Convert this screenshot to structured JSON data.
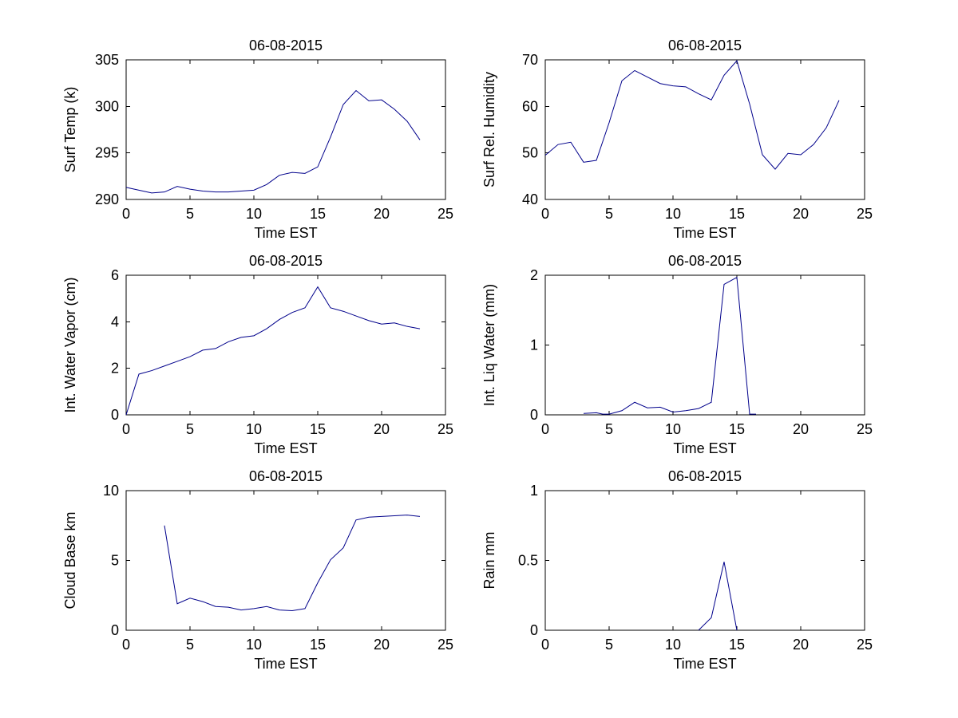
{
  "figure": {
    "background": "#ffffff",
    "axis_color": "#000000",
    "line_color": "#00008b",
    "text_color": "#000000"
  },
  "chart_data": [
    {
      "id": "surf-temp",
      "type": "line",
      "title": "06-08-2015",
      "xlabel": "Time EST",
      "ylabel": "Surf Temp (k)",
      "xlim": [
        0,
        25
      ],
      "ylim": [
        290,
        305
      ],
      "xticks": [
        0,
        5,
        10,
        15,
        20,
        25
      ],
      "yticks": [
        290,
        295,
        300,
        305
      ],
      "grid": false,
      "x": [
        0,
        1,
        2,
        3,
        4,
        5,
        6,
        7,
        8,
        9,
        10,
        11,
        12,
        13,
        14,
        15,
        16,
        17,
        18,
        19,
        20,
        21,
        22,
        23
      ],
      "y": [
        291.3,
        291.0,
        290.7,
        290.8,
        291.4,
        291.1,
        290.9,
        290.8,
        290.8,
        290.9,
        291.0,
        291.6,
        292.6,
        292.9,
        292.8,
        293.5,
        296.7,
        300.2,
        301.7,
        300.6,
        300.7,
        299.7,
        298.4,
        296.4
      ]
    },
    {
      "id": "surf-rel-humidity",
      "type": "line",
      "title": "06-08-2015",
      "xlabel": "Time EST",
      "ylabel": "Surf Rel. Humidity",
      "xlim": [
        0,
        25
      ],
      "ylim": [
        40,
        70
      ],
      "xticks": [
        0,
        5,
        10,
        15,
        20,
        25
      ],
      "yticks": [
        40,
        50,
        60,
        70
      ],
      "grid": false,
      "x": [
        0,
        1,
        2,
        3,
        4,
        5,
        6,
        7,
        8,
        9,
        10,
        11,
        12,
        13,
        14,
        15,
        16,
        17,
        18,
        19,
        20,
        21,
        22,
        23
      ],
      "y": [
        49.5,
        51.8,
        52.3,
        48.0,
        48.4,
        56.5,
        65.5,
        67.7,
        66.3,
        64.9,
        64.4,
        64.2,
        62.7,
        61.4,
        66.7,
        69.8,
        60.5,
        49.6,
        46.5,
        49.9,
        49.6,
        51.8,
        55.4,
        61.3
      ]
    },
    {
      "id": "int-water-vapor",
      "type": "line",
      "title": "06-08-2015",
      "xlabel": "Time EST",
      "ylabel": "Int. Water Vapor (cm)",
      "xlim": [
        0,
        25
      ],
      "ylim": [
        0,
        6
      ],
      "xticks": [
        0,
        5,
        10,
        15,
        20,
        25
      ],
      "yticks": [
        0,
        2,
        4,
        6
      ],
      "grid": false,
      "x": [
        0,
        1,
        2,
        3,
        4,
        5,
        6,
        7,
        8,
        9,
        10,
        11,
        12,
        13,
        14,
        15,
        16,
        17,
        18,
        19,
        20,
        21,
        22,
        23
      ],
      "y": [
        0,
        1.75,
        1.9,
        2.1,
        2.3,
        2.5,
        2.78,
        2.85,
        3.14,
        3.33,
        3.4,
        3.7,
        4.1,
        4.4,
        4.6,
        5.5,
        4.6,
        4.45,
        4.25,
        4.05,
        3.9,
        3.95,
        3.8,
        3.7
      ]
    },
    {
      "id": "int-liq-water",
      "type": "line",
      "title": "06-08-2015",
      "xlabel": "Time EST",
      "ylabel": "Int. Liq Water (mm)",
      "xlim": [
        0,
        25
      ],
      "ylim": [
        0,
        2
      ],
      "xticks": [
        0,
        5,
        10,
        15,
        20,
        25
      ],
      "yticks": [
        0,
        1,
        2
      ],
      "grid": false,
      "x": [
        3,
        4,
        4.5,
        5,
        6,
        7,
        8,
        9,
        10,
        11,
        12,
        13,
        14,
        15,
        16,
        16.5
      ],
      "y": [
        0.02,
        0.03,
        0.01,
        0.01,
        0.06,
        0.18,
        0.1,
        0.11,
        0.04,
        0.06,
        0.09,
        0.18,
        1.87,
        1.97,
        0.01,
        0.01
      ]
    },
    {
      "id": "cloud-base",
      "type": "line",
      "title": "06-08-2015",
      "xlabel": "Time EST",
      "ylabel": "Cloud Base km",
      "xlim": [
        0,
        25
      ],
      "ylim": [
        0,
        10
      ],
      "xticks": [
        0,
        5,
        10,
        15,
        20,
        25
      ],
      "yticks": [
        0,
        5,
        10
      ],
      "grid": false,
      "x": [
        3,
        4,
        5,
        6,
        7,
        8,
        9,
        10,
        11,
        12,
        13,
        14,
        15,
        16,
        17,
        18,
        19,
        20,
        21,
        22,
        23
      ],
      "y": [
        7.5,
        1.9,
        2.3,
        2.05,
        1.7,
        1.65,
        1.45,
        1.55,
        1.7,
        1.45,
        1.4,
        1.55,
        3.4,
        5.05,
        5.9,
        7.9,
        8.1,
        8.15,
        8.2,
        8.25,
        8.15
      ]
    },
    {
      "id": "rain",
      "type": "line",
      "title": "06-08-2015",
      "xlabel": "Time EST",
      "ylabel": "Rain mm",
      "xlim": [
        0,
        25
      ],
      "ylim": [
        0,
        1
      ],
      "xticks": [
        0,
        5,
        10,
        15,
        20,
        25
      ],
      "yticks": [
        0,
        0.5,
        1
      ],
      "grid": false,
      "x": [
        12,
        13,
        14,
        15
      ],
      "y": [
        0,
        0.09,
        0.49,
        0
      ]
    }
  ]
}
